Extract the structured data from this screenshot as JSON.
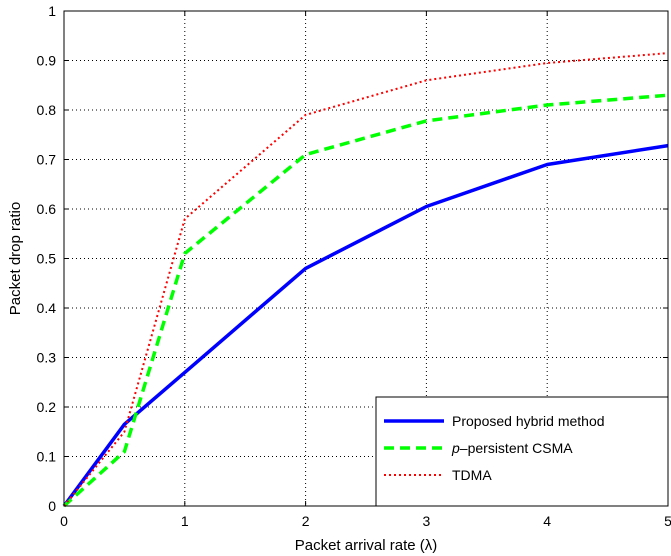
{
  "chart_data": {
    "type": "line",
    "title": "",
    "xlabel": "Packet arrival rate (λ)",
    "ylabel": "Packet drop ratio",
    "xlim": [
      0,
      5
    ],
    "ylim": [
      0,
      1
    ],
    "xticks": [
      "0",
      "1",
      "2",
      "3",
      "4",
      "5"
    ],
    "yticks": [
      "0",
      "0.1",
      "0.2",
      "0.3",
      "0.4",
      "0.5",
      "0.6",
      "0.7",
      "0.8",
      "0.9",
      "1"
    ],
    "grid": true,
    "legend_position": "bottom-right",
    "series": [
      {
        "name": "Proposed hybrid method",
        "color": "#0000ff",
        "style": "solid",
        "x": [
          0,
          0.5,
          1,
          2,
          3,
          4,
          5
        ],
        "y": [
          0,
          0.165,
          0.27,
          0.48,
          0.605,
          0.69,
          0.728
        ]
      },
      {
        "name_prefix": "p",
        "name_suffix": "–persistent CSMA",
        "color": "#00ff00",
        "style": "dashed",
        "x": [
          0,
          0.5,
          1,
          2,
          3,
          4,
          5
        ],
        "y": [
          0,
          0.11,
          0.51,
          0.71,
          0.778,
          0.81,
          0.83
        ]
      },
      {
        "name": "TDMA",
        "color": "#ff0000",
        "style": "dotted",
        "x": [
          0,
          0.5,
          1,
          2,
          3,
          4,
          5
        ],
        "y": [
          0,
          0.15,
          0.58,
          0.79,
          0.86,
          0.895,
          0.915
        ]
      }
    ]
  }
}
